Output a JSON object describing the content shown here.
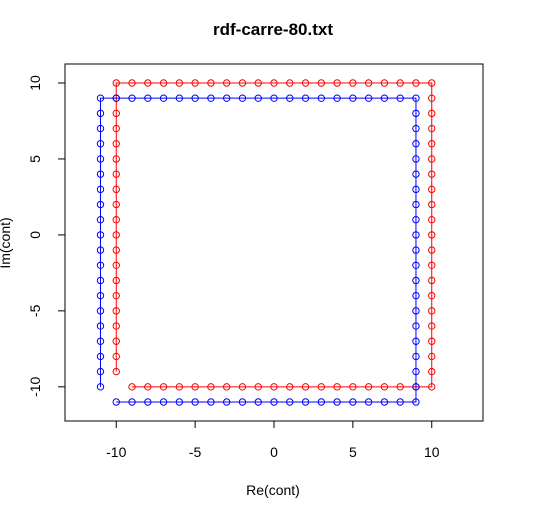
{
  "chart_data": {
    "type": "scatter",
    "title": "rdf-carre-80.txt",
    "xlabel": "Re(cont)",
    "ylabel": "Im(cont)",
    "xlim": [
      -13.25,
      13.25
    ],
    "ylim": [
      -12.25,
      11.25
    ],
    "x_ticks": [
      -10,
      -5,
      0,
      5,
      10
    ],
    "y_ticks": [
      -10,
      -5,
      0,
      5,
      10
    ],
    "x_tick_labels": [
      "-10",
      "-5",
      "0",
      "5",
      "10"
    ],
    "y_tick_labels": [
      "-10",
      "-5",
      "0",
      "5",
      "10"
    ],
    "grid": false,
    "series": [
      {
        "color": "#ff0000",
        "style": "line+open-circles",
        "path": "square contour, from (-10,-9) up the left side to (-10,10), along the top to (10,10), down the right side to (10,-10), along the bottom to (-9,-10); unit spacing",
        "corners": [
          [
            -10,
            -9
          ],
          [
            -10,
            10
          ],
          [
            10,
            10
          ],
          [
            10,
            -10
          ],
          [
            -9,
            -10
          ]
        ]
      },
      {
        "color": "#0000ff",
        "style": "line+open-circles",
        "path": "square contour shifted by (-1,-1), from (-11,-10) up the left side to (-11,9), along the top to (9,9), down the right side to (9,-11), along the bottom to (-10,-11); unit spacing",
        "corners": [
          [
            -11,
            -10
          ],
          [
            -11,
            9
          ],
          [
            9,
            9
          ],
          [
            9,
            -11
          ],
          [
            -10,
            -11
          ]
        ]
      }
    ]
  }
}
